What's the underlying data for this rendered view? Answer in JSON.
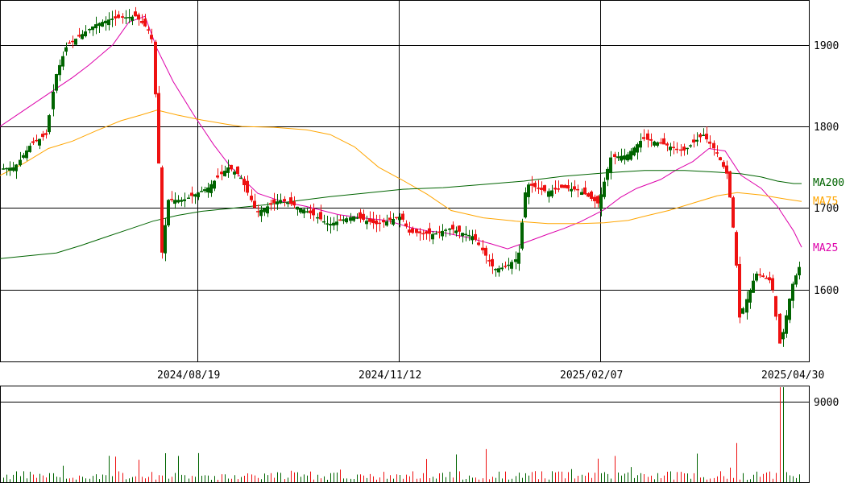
{
  "chart_data": {
    "type": "candlestick",
    "price_axis": {
      "ticks": [
        1600,
        1700,
        1800,
        1900
      ],
      "tick_labels": [
        "1600",
        "1700",
        "1800",
        "1900"
      ],
      "range": [
        1512,
        1955
      ]
    },
    "date_axis": {
      "tick_labels": [
        "2024/08/19",
        "2024/11/12",
        "2025/02/07",
        "2025/04/30"
      ]
    },
    "volume_axis": {
      "ticks": [
        9000
      ],
      "tick_labels": [
        "9000"
      ],
      "range": [
        0,
        10000
      ]
    },
    "colors": {
      "up": "#006400",
      "down": "#ee1111",
      "ma25": "#dd00aa",
      "ma75": "#ffa500",
      "ma200": "#006400",
      "grid": "#000000"
    },
    "moving_averages": [
      {
        "name": "MA25",
        "color": "#dd00aa",
        "points": [
          [
            0,
            1800
          ],
          [
            30,
            1820
          ],
          [
            60,
            1840
          ],
          [
            90,
            1860
          ],
          [
            110,
            1875
          ],
          [
            140,
            1900
          ],
          [
            160,
            1928
          ],
          [
            180,
            1935
          ],
          [
            195,
            1895
          ],
          [
            215,
            1855
          ],
          [
            240,
            1815
          ],
          [
            265,
            1778
          ],
          [
            285,
            1752
          ],
          [
            300,
            1737
          ],
          [
            320,
            1718
          ],
          [
            350,
            1708
          ],
          [
            380,
            1702
          ],
          [
            420,
            1692
          ],
          [
            450,
            1688
          ],
          [
            480,
            1685
          ],
          [
            510,
            1676
          ],
          [
            530,
            1672
          ],
          [
            550,
            1670
          ],
          [
            580,
            1664
          ],
          [
            610,
            1656
          ],
          [
            630,
            1650
          ],
          [
            650,
            1657
          ],
          [
            680,
            1668
          ],
          [
            700,
            1675
          ],
          [
            720,
            1683
          ],
          [
            750,
            1698
          ],
          [
            770,
            1713
          ],
          [
            790,
            1724
          ],
          [
            820,
            1735
          ],
          [
            840,
            1747
          ],
          [
            860,
            1757
          ],
          [
            880,
            1773
          ],
          [
            900,
            1770
          ],
          [
            920,
            1740
          ],
          [
            945,
            1724
          ],
          [
            965,
            1702
          ],
          [
            985,
            1672
          ],
          [
            995,
            1652
          ]
        ]
      },
      {
        "name": "MA75",
        "color": "#ffa500",
        "points": [
          [
            0,
            1740
          ],
          [
            30,
            1755
          ],
          [
            60,
            1773
          ],
          [
            90,
            1782
          ],
          [
            120,
            1795
          ],
          [
            150,
            1807
          ],
          [
            175,
            1814
          ],
          [
            195,
            1820
          ],
          [
            220,
            1814
          ],
          [
            250,
            1808
          ],
          [
            280,
            1803
          ],
          [
            300,
            1800
          ],
          [
            340,
            1799
          ],
          [
            380,
            1796
          ],
          [
            410,
            1790
          ],
          [
            440,
            1775
          ],
          [
            470,
            1750
          ],
          [
            500,
            1734
          ],
          [
            530,
            1717
          ],
          [
            560,
            1697
          ],
          [
            600,
            1688
          ],
          [
            640,
            1684
          ],
          [
            680,
            1681
          ],
          [
            720,
            1681
          ],
          [
            750,
            1682
          ],
          [
            780,
            1685
          ],
          [
            800,
            1690
          ],
          [
            830,
            1697
          ],
          [
            860,
            1706
          ],
          [
            890,
            1715
          ],
          [
            915,
            1719
          ],
          [
            945,
            1716
          ],
          [
            975,
            1711
          ],
          [
            995,
            1708
          ]
        ]
      },
      {
        "name": "MA200",
        "color": "#006400",
        "points": [
          [
            0,
            1638
          ],
          [
            30,
            1641
          ],
          [
            70,
            1645
          ],
          [
            100,
            1654
          ],
          [
            130,
            1664
          ],
          [
            160,
            1674
          ],
          [
            190,
            1684
          ],
          [
            220,
            1691
          ],
          [
            250,
            1696
          ],
          [
            290,
            1700
          ],
          [
            330,
            1704
          ],
          [
            370,
            1709
          ],
          [
            410,
            1714
          ],
          [
            450,
            1718
          ],
          [
            500,
            1723
          ],
          [
            550,
            1725
          ],
          [
            600,
            1729
          ],
          [
            650,
            1733
          ],
          [
            700,
            1739
          ],
          [
            750,
            1743
          ],
          [
            800,
            1746
          ],
          [
            850,
            1746
          ],
          [
            890,
            1744
          ],
          [
            920,
            1742
          ],
          [
            945,
            1738
          ],
          [
            965,
            1733
          ],
          [
            985,
            1730
          ],
          [
            995,
            1730
          ]
        ]
      }
    ]
  },
  "labels": {
    "price_ticks": [
      "1600",
      "1700",
      "1800",
      "1900"
    ],
    "date_ticks": [
      "2024/08/19",
      "2024/11/12",
      "2025/02/07",
      "2025/04/30"
    ],
    "volume_tick": "9000",
    "ma200": "MA200",
    "ma75": "MA75",
    "ma25": "MA25"
  }
}
